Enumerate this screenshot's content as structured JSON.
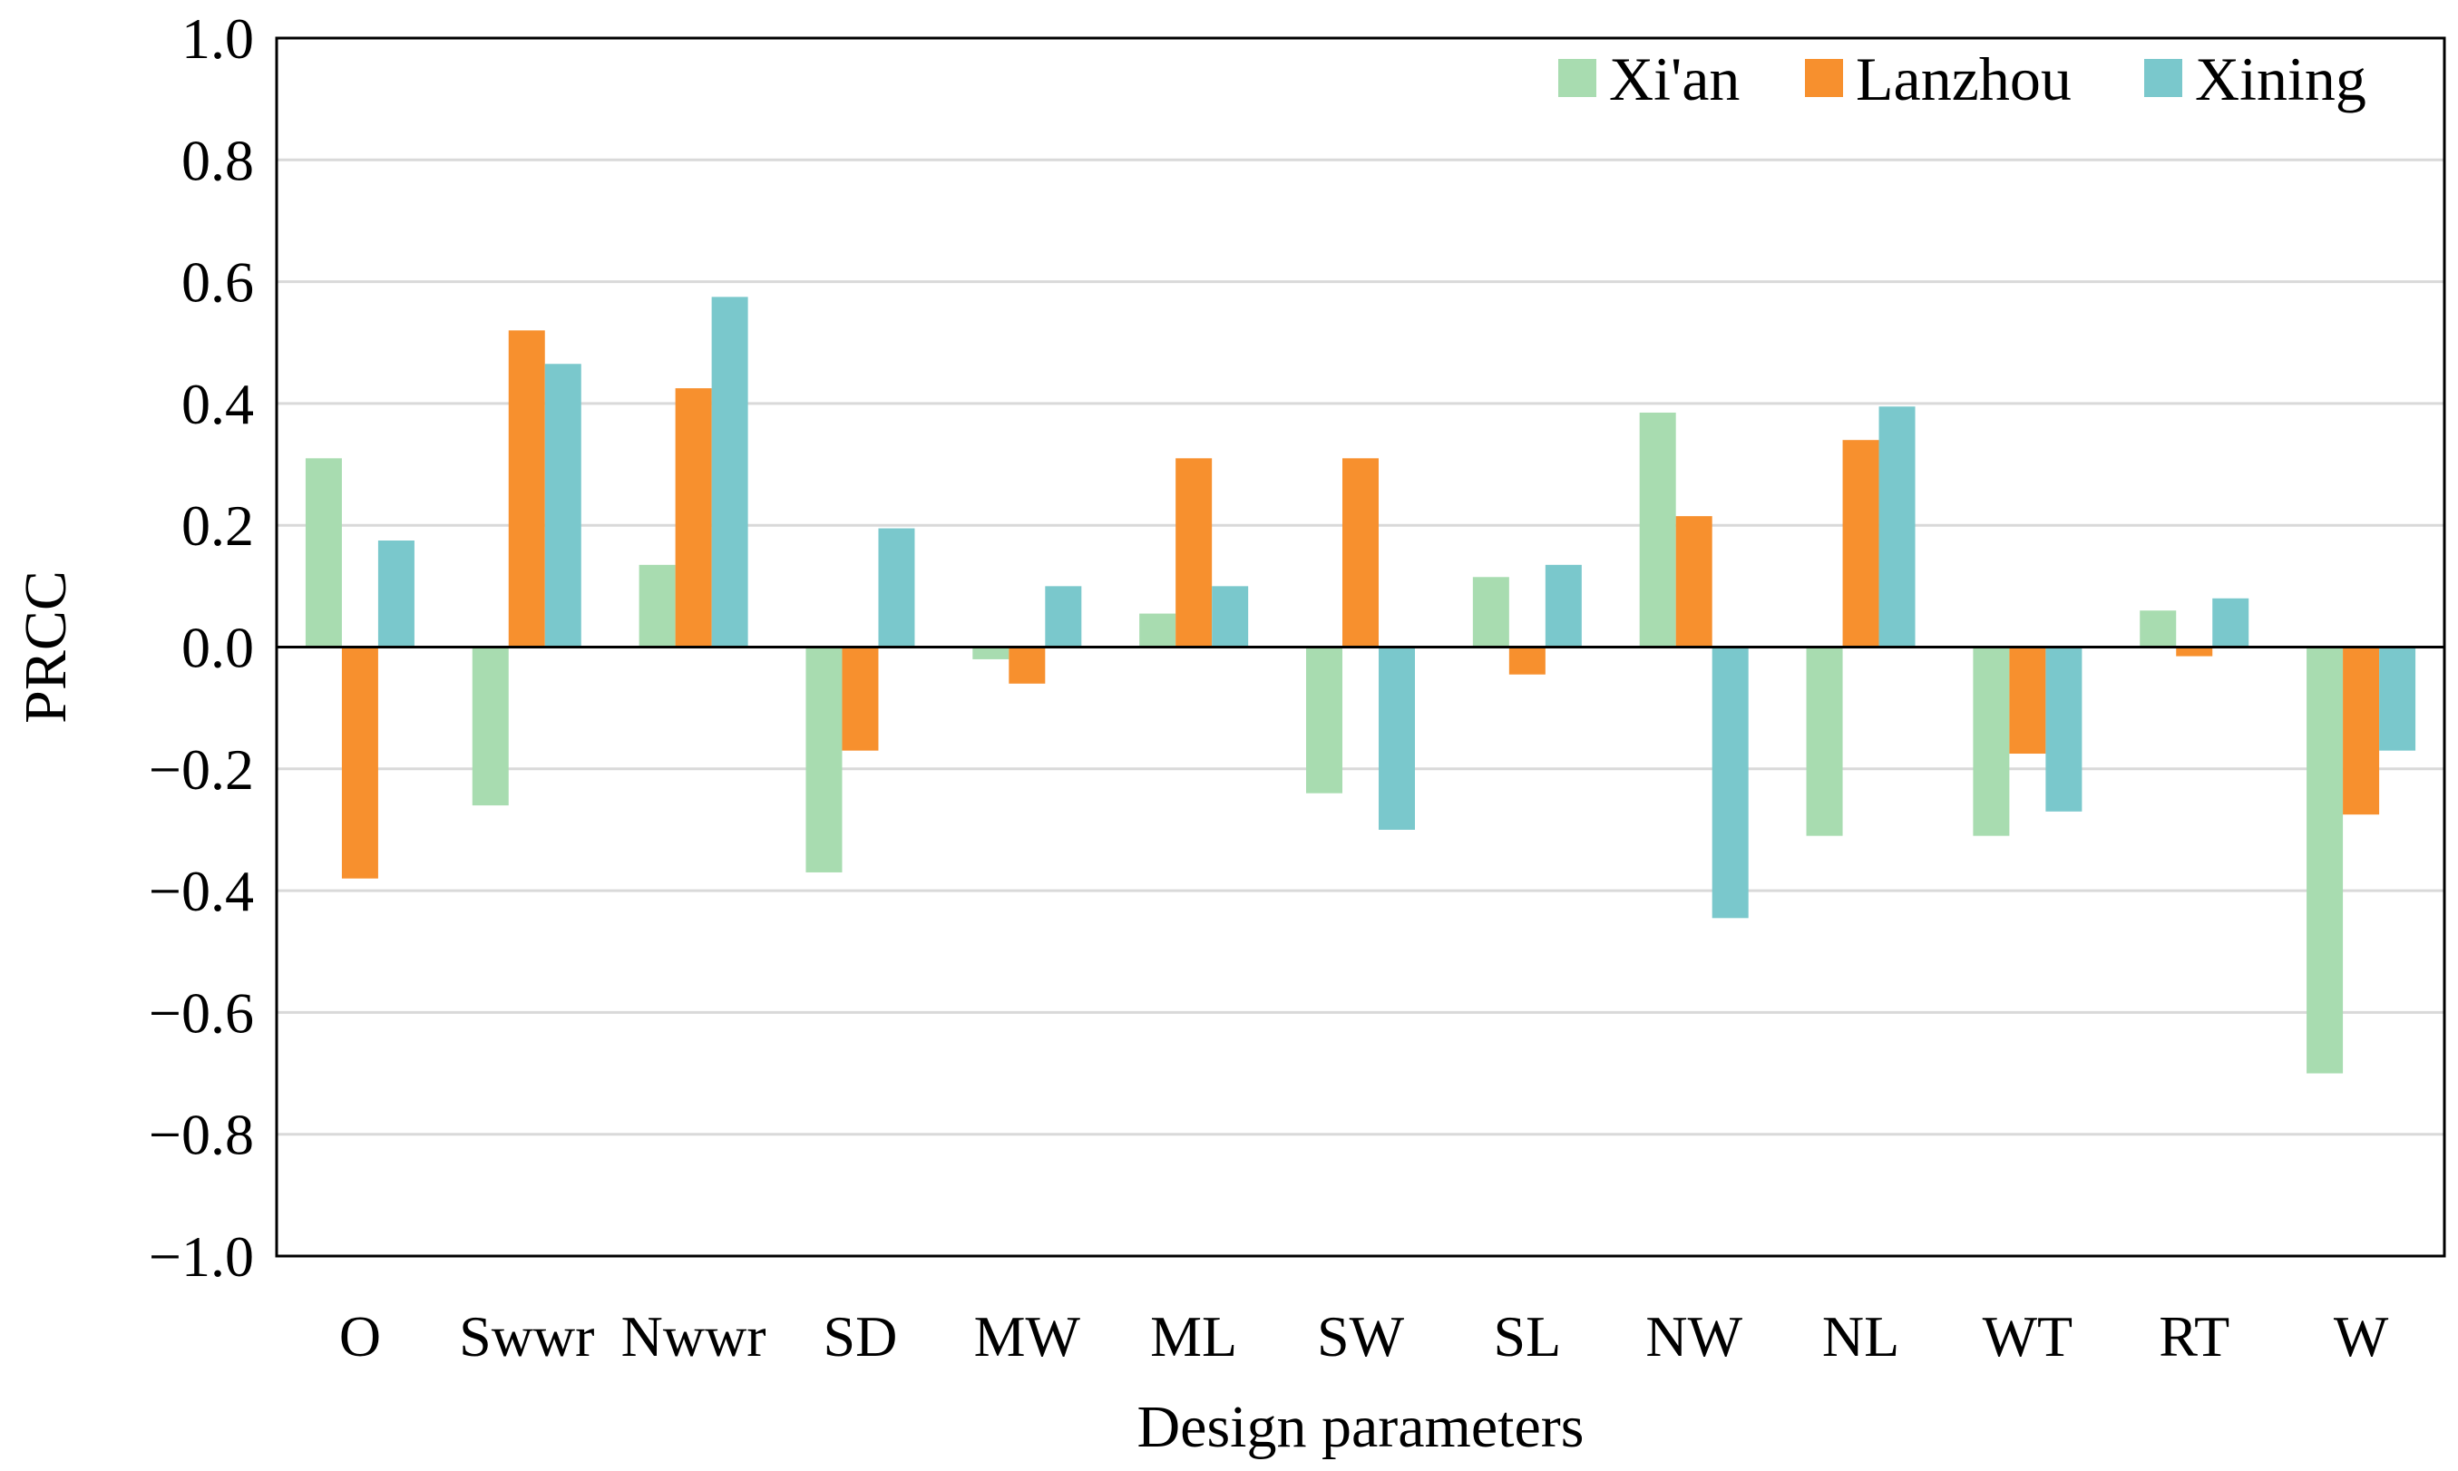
{
  "chart_data": {
    "type": "bar",
    "title": "",
    "xlabel": "Design parameters",
    "ylabel": "PRCC",
    "ylim": [
      -1.0,
      1.0
    ],
    "ytick_step": 0.2,
    "yticks": [
      "1.0",
      "0.8",
      "0.6",
      "0.4",
      "0.2",
      "0.0",
      "−0.2",
      "−0.4",
      "−0.6",
      "−0.8",
      "−1.0"
    ],
    "grid": true,
    "legend_position": "top-right",
    "categories": [
      "O",
      "Swwr",
      "Nwwr",
      "SD",
      "MW",
      "ML",
      "SW",
      "SL",
      "NW",
      "NL",
      "WT",
      "RT",
      "W"
    ],
    "series": [
      {
        "name": "Xi'an",
        "color": "#a8dcb0",
        "values": [
          0.31,
          -0.26,
          0.135,
          -0.37,
          -0.02,
          0.055,
          -0.24,
          0.115,
          0.385,
          -0.31,
          -0.31,
          0.06,
          -0.7
        ]
      },
      {
        "name": "Lanzhou",
        "color": "#f7902e",
        "values": [
          -0.38,
          0.52,
          0.425,
          -0.17,
          -0.06,
          0.31,
          0.31,
          -0.045,
          0.215,
          0.34,
          -0.175,
          -0.015,
          -0.275
        ]
      },
      {
        "name": "Xining",
        "color": "#7ac8cc",
        "values": [
          0.175,
          0.465,
          0.575,
          0.195,
          0.1,
          0.1,
          -0.3,
          0.135,
          -0.445,
          0.395,
          -0.27,
          0.08,
          -0.17
        ]
      }
    ]
  }
}
